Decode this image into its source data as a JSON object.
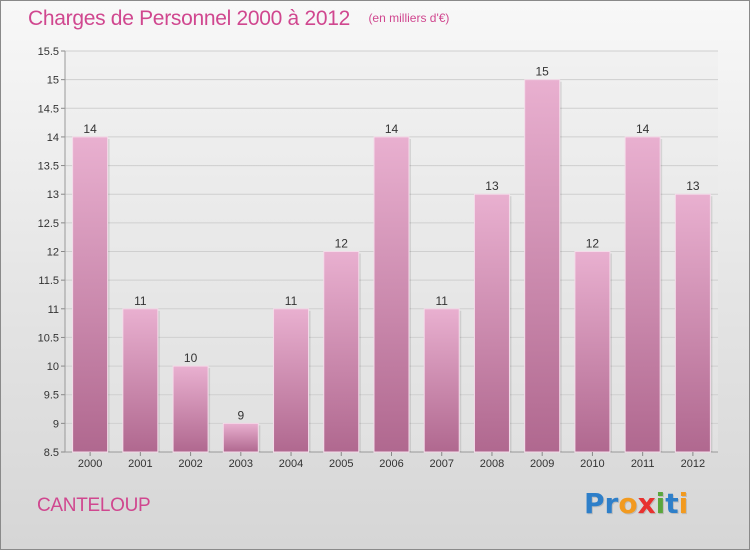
{
  "header": {
    "title": "Charges de Personnel 2000 à 2012",
    "unit_note": "(en milliers d'€)"
  },
  "footer": {
    "commune": "CANTELOUP",
    "logo_text": "Proxiti",
    "logo_letters": [
      {
        "ch": "P",
        "color": "#2e7fc9"
      },
      {
        "ch": "r",
        "color": "#2e7fc9"
      },
      {
        "ch": "o",
        "color": "#f29a1f"
      },
      {
        "ch": "x",
        "color": "#e8312f"
      },
      {
        "ch": "i",
        "color": "#5aa63c"
      },
      {
        "ch": "t",
        "color": "#2e7fc9"
      },
      {
        "ch": "i",
        "color": "#f29a1f"
      }
    ]
  },
  "colors": {
    "accent": "#d0478f",
    "bar_light": "#e9b0d0",
    "bar_dark": "#b0688f",
    "grid": "#cfcfcf"
  },
  "chart_data": {
    "type": "bar",
    "title": "Charges de Personnel 2000 à 2012",
    "subtitle": "(en milliers d'€)",
    "categories": [
      "2000",
      "2001",
      "2002",
      "2003",
      "2004",
      "2005",
      "2006",
      "2007",
      "2008",
      "2009",
      "2010",
      "2011",
      "2012"
    ],
    "values": [
      14,
      11,
      10,
      9,
      11,
      12,
      14,
      11,
      13,
      15,
      12,
      14,
      13
    ],
    "value_labels": [
      "14",
      "11",
      "10",
      "9",
      "11",
      "12",
      "14",
      "11",
      "13",
      "15",
      "12",
      "14",
      "13"
    ],
    "ylim": [
      8.5,
      15.5
    ],
    "yticks": [
      8.5,
      9,
      9.5,
      10,
      10.5,
      11,
      11.5,
      12,
      12.5,
      13,
      13.5,
      14,
      14.5,
      15,
      15.5
    ],
    "ytick_labels": [
      "8.5",
      "9",
      "9.5",
      "10",
      "10.5",
      "11",
      "11.5",
      "12",
      "12.5",
      "13",
      "13.5",
      "14",
      "14.5",
      "15",
      "15.5"
    ],
    "grid": true,
    "xlabel": "",
    "ylabel": ""
  }
}
